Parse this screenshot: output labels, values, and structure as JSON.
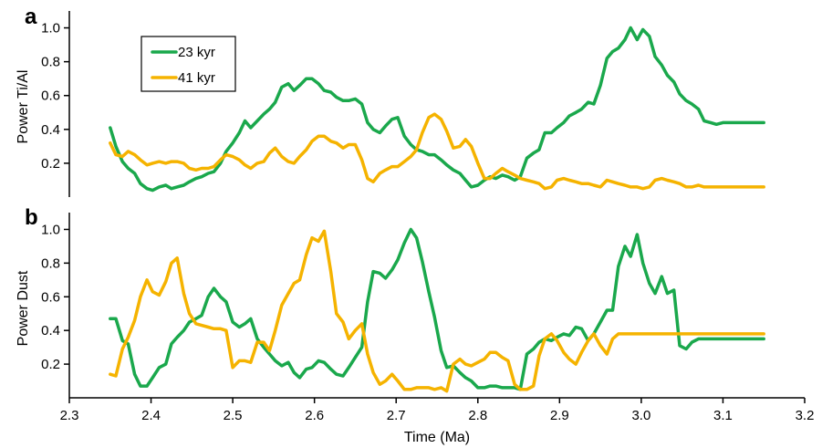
{
  "chart_data": [
    {
      "type": "line",
      "panel_letter": "a",
      "ylabel": "Power Ti/Al",
      "xlabel": "",
      "xlim": [
        2.3,
        3.2
      ],
      "ylim": [
        0,
        1.1
      ],
      "yticks": [
        0.2,
        0.4,
        0.6,
        0.8,
        1.0
      ],
      "ytick_labels": [
        "0.2",
        "0.4",
        "0.6",
        "0.8",
        "1.0"
      ],
      "show_x_ticks": false,
      "legend": {
        "placement": "top-left",
        "entries": [
          "23 kyr",
          "41 kyr"
        ]
      },
      "series": [
        {
          "name": "23 kyr",
          "color": "#1aa84c",
          "x": [
            2.35,
            2.357,
            2.365,
            2.372,
            2.38,
            2.387,
            2.395,
            2.402,
            2.41,
            2.418,
            2.425,
            2.432,
            2.44,
            2.447,
            2.455,
            2.462,
            2.47,
            2.477,
            2.485,
            2.492,
            2.5,
            2.508,
            2.515,
            2.522,
            2.53,
            2.538,
            2.545,
            2.552,
            2.56,
            2.568,
            2.575,
            2.582,
            2.59,
            2.597,
            2.605,
            2.612,
            2.62,
            2.627,
            2.635,
            2.642,
            2.65,
            2.658,
            2.665,
            2.672,
            2.68,
            2.687,
            2.695,
            2.702,
            2.71,
            2.718,
            2.725,
            2.732,
            2.74,
            2.747,
            2.755,
            2.762,
            2.77,
            2.778,
            2.785,
            2.792,
            2.8,
            2.808,
            2.815,
            2.822,
            2.83,
            2.837,
            2.845,
            2.852,
            2.86,
            2.868,
            2.875,
            2.882,
            2.89,
            2.897,
            2.905,
            2.912,
            2.92,
            2.927,
            2.935,
            2.942,
            2.95,
            2.958,
            2.965,
            2.972,
            2.98,
            2.987,
            2.995,
            3.002,
            3.01,
            3.017,
            3.025,
            3.032,
            3.04,
            3.047,
            3.055,
            3.062,
            3.07,
            3.077,
            3.085,
            3.092,
            3.1,
            3.108,
            3.115,
            3.122,
            3.13,
            3.137,
            3.145,
            3.15
          ],
          "values": [
            0.41,
            0.3,
            0.21,
            0.17,
            0.14,
            0.08,
            0.05,
            0.04,
            0.06,
            0.07,
            0.05,
            0.06,
            0.07,
            0.09,
            0.11,
            0.12,
            0.14,
            0.15,
            0.2,
            0.27,
            0.32,
            0.38,
            0.45,
            0.41,
            0.45,
            0.49,
            0.52,
            0.56,
            0.65,
            0.67,
            0.63,
            0.66,
            0.7,
            0.7,
            0.67,
            0.63,
            0.62,
            0.59,
            0.57,
            0.57,
            0.58,
            0.55,
            0.44,
            0.4,
            0.38,
            0.42,
            0.46,
            0.47,
            0.36,
            0.31,
            0.28,
            0.27,
            0.25,
            0.25,
            0.22,
            0.19,
            0.16,
            0.14,
            0.1,
            0.06,
            0.07,
            0.1,
            0.12,
            0.11,
            0.13,
            0.12,
            0.1,
            0.12,
            0.23,
            0.26,
            0.28,
            0.38,
            0.38,
            0.41,
            0.44,
            0.48,
            0.5,
            0.52,
            0.56,
            0.55,
            0.66,
            0.82,
            0.86,
            0.88,
            0.93,
            1.0,
            0.93,
            0.99,
            0.95,
            0.83,
            0.78,
            0.72,
            0.68,
            0.61,
            0.57,
            0.55,
            0.52,
            0.45,
            0.44,
            0.43,
            0.44,
            0.44,
            0.44,
            0.44,
            0.44,
            0.44,
            0.44,
            0.44
          ]
        },
        {
          "name": "41 kyr",
          "color": "#f5b300",
          "x": [
            2.35,
            2.357,
            2.365,
            2.372,
            2.38,
            2.387,
            2.395,
            2.402,
            2.41,
            2.418,
            2.425,
            2.432,
            2.44,
            2.447,
            2.455,
            2.462,
            2.47,
            2.477,
            2.485,
            2.492,
            2.5,
            2.508,
            2.515,
            2.522,
            2.53,
            2.538,
            2.545,
            2.552,
            2.56,
            2.568,
            2.575,
            2.582,
            2.59,
            2.597,
            2.605,
            2.612,
            2.62,
            2.627,
            2.635,
            2.642,
            2.65,
            2.658,
            2.665,
            2.672,
            2.68,
            2.687,
            2.695,
            2.702,
            2.71,
            2.718,
            2.725,
            2.732,
            2.74,
            2.747,
            2.755,
            2.762,
            2.77,
            2.778,
            2.785,
            2.792,
            2.8,
            2.808,
            2.815,
            2.822,
            2.83,
            2.837,
            2.845,
            2.852,
            2.86,
            2.868,
            2.875,
            2.882,
            2.89,
            2.897,
            2.905,
            2.912,
            2.92,
            2.927,
            2.935,
            2.942,
            2.95,
            2.958,
            2.965,
            2.972,
            2.98,
            2.987,
            2.995,
            3.002,
            3.01,
            3.017,
            3.025,
            3.032,
            3.04,
            3.047,
            3.055,
            3.062,
            3.07,
            3.077,
            3.085,
            3.092,
            3.1,
            3.108,
            3.115,
            3.122,
            3.13,
            3.137,
            3.145,
            3.15
          ],
          "values": [
            0.32,
            0.25,
            0.24,
            0.27,
            0.25,
            0.22,
            0.19,
            0.2,
            0.21,
            0.2,
            0.21,
            0.21,
            0.2,
            0.17,
            0.16,
            0.17,
            0.17,
            0.18,
            0.22,
            0.25,
            0.24,
            0.22,
            0.19,
            0.17,
            0.2,
            0.21,
            0.26,
            0.29,
            0.24,
            0.21,
            0.2,
            0.24,
            0.28,
            0.33,
            0.36,
            0.36,
            0.33,
            0.32,
            0.29,
            0.31,
            0.31,
            0.22,
            0.11,
            0.09,
            0.14,
            0.16,
            0.18,
            0.18,
            0.21,
            0.24,
            0.28,
            0.38,
            0.47,
            0.49,
            0.46,
            0.39,
            0.29,
            0.3,
            0.34,
            0.3,
            0.2,
            0.11,
            0.11,
            0.14,
            0.17,
            0.15,
            0.13,
            0.11,
            0.1,
            0.09,
            0.08,
            0.05,
            0.06,
            0.1,
            0.11,
            0.1,
            0.09,
            0.08,
            0.08,
            0.07,
            0.06,
            0.1,
            0.09,
            0.08,
            0.07,
            0.06,
            0.06,
            0.05,
            0.06,
            0.1,
            0.11,
            0.1,
            0.09,
            0.08,
            0.06,
            0.06,
            0.07,
            0.06,
            0.06,
            0.06,
            0.06,
            0.06,
            0.06,
            0.06,
            0.06,
            0.06,
            0.06,
            0.06
          ]
        }
      ]
    },
    {
      "type": "line",
      "panel_letter": "b",
      "ylabel": "Power Dust",
      "xlabel": "Time (Ma)",
      "xlim": [
        2.3,
        3.2
      ],
      "ylim": [
        0,
        1.1
      ],
      "yticks": [
        0.2,
        0.4,
        0.6,
        0.8,
        1.0
      ],
      "ytick_labels": [
        "0.2",
        "0.4",
        "0.6",
        "0.8",
        "1.0"
      ],
      "xticks": [
        2.3,
        2.4,
        2.5,
        2.6,
        2.7,
        2.8,
        2.9,
        3.0,
        3.1,
        3.2
      ],
      "xtick_labels": [
        "2.3",
        "2.4",
        "2.5",
        "2.6",
        "2.7",
        "2.8",
        "2.9",
        "3.0",
        "3.1",
        "3.2"
      ],
      "series": [
        {
          "name": "23 kyr",
          "color": "#1aa84c",
          "x": [
            2.35,
            2.357,
            2.365,
            2.372,
            2.38,
            2.387,
            2.395,
            2.402,
            2.41,
            2.418,
            2.425,
            2.432,
            2.44,
            2.447,
            2.455,
            2.462,
            2.47,
            2.477,
            2.485,
            2.492,
            2.5,
            2.508,
            2.515,
            2.522,
            2.53,
            2.538,
            2.545,
            2.552,
            2.56,
            2.568,
            2.575,
            2.582,
            2.59,
            2.597,
            2.605,
            2.612,
            2.62,
            2.627,
            2.635,
            2.642,
            2.65,
            2.658,
            2.665,
            2.672,
            2.68,
            2.687,
            2.695,
            2.702,
            2.71,
            2.718,
            2.725,
            2.732,
            2.74,
            2.747,
            2.755,
            2.762,
            2.77,
            2.778,
            2.785,
            2.792,
            2.8,
            2.808,
            2.815,
            2.822,
            2.83,
            2.837,
            2.845,
            2.852,
            2.86,
            2.868,
            2.875,
            2.882,
            2.89,
            2.897,
            2.905,
            2.912,
            2.92,
            2.927,
            2.935,
            2.942,
            2.95,
            2.958,
            2.965,
            2.972,
            2.98,
            2.987,
            2.995,
            3.002,
            3.01,
            3.017,
            3.025,
            3.032,
            3.04,
            3.047,
            3.055,
            3.062,
            3.07,
            3.077,
            3.085,
            3.092,
            3.1,
            3.108,
            3.115,
            3.122,
            3.13,
            3.137,
            3.145,
            3.15
          ],
          "values": [
            0.47,
            0.47,
            0.34,
            0.32,
            0.14,
            0.07,
            0.07,
            0.12,
            0.18,
            0.2,
            0.32,
            0.36,
            0.4,
            0.45,
            0.47,
            0.49,
            0.6,
            0.65,
            0.6,
            0.57,
            0.45,
            0.42,
            0.44,
            0.47,
            0.35,
            0.3,
            0.26,
            0.22,
            0.19,
            0.21,
            0.15,
            0.12,
            0.17,
            0.18,
            0.22,
            0.21,
            0.17,
            0.14,
            0.13,
            0.18,
            0.24,
            0.3,
            0.57,
            0.75,
            0.74,
            0.71,
            0.76,
            0.82,
            0.92,
            1.0,
            0.95,
            0.81,
            0.63,
            0.48,
            0.28,
            0.18,
            0.19,
            0.15,
            0.12,
            0.1,
            0.06,
            0.06,
            0.07,
            0.07,
            0.06,
            0.06,
            0.06,
            0.05,
            0.26,
            0.29,
            0.33,
            0.35,
            0.34,
            0.36,
            0.38,
            0.37,
            0.42,
            0.41,
            0.34,
            0.38,
            0.45,
            0.52,
            0.52,
            0.78,
            0.9,
            0.84,
            0.97,
            0.8,
            0.68,
            0.62,
            0.72,
            0.62,
            0.64,
            0.31,
            0.29,
            0.33,
            0.35,
            0.35,
            0.35,
            0.35,
            0.35,
            0.35,
            0.35,
            0.35,
            0.35,
            0.35,
            0.35,
            0.35
          ]
        },
        {
          "name": "41 kyr",
          "color": "#f5b300",
          "x": [
            2.35,
            2.357,
            2.365,
            2.372,
            2.38,
            2.387,
            2.395,
            2.402,
            2.41,
            2.418,
            2.425,
            2.432,
            2.44,
            2.447,
            2.455,
            2.462,
            2.47,
            2.477,
            2.485,
            2.492,
            2.5,
            2.508,
            2.515,
            2.522,
            2.53,
            2.538,
            2.545,
            2.552,
            2.56,
            2.568,
            2.575,
            2.582,
            2.59,
            2.597,
            2.605,
            2.612,
            2.62,
            2.627,
            2.635,
            2.642,
            2.65,
            2.658,
            2.665,
            2.672,
            2.68,
            2.687,
            2.695,
            2.702,
            2.71,
            2.718,
            2.725,
            2.732,
            2.74,
            2.747,
            2.755,
            2.762,
            2.77,
            2.778,
            2.785,
            2.792,
            2.8,
            2.808,
            2.815,
            2.822,
            2.83,
            2.837,
            2.845,
            2.852,
            2.86,
            2.868,
            2.875,
            2.882,
            2.89,
            2.897,
            2.905,
            2.912,
            2.92,
            2.927,
            2.935,
            2.942,
            2.95,
            2.958,
            2.965,
            2.972,
            2.98,
            2.987,
            2.995,
            3.002,
            3.01,
            3.017,
            3.025,
            3.032,
            3.04,
            3.047,
            3.055,
            3.062,
            3.07,
            3.077,
            3.085,
            3.092,
            3.1,
            3.108,
            3.115,
            3.122,
            3.13,
            3.137,
            3.145,
            3.15
          ],
          "values": [
            0.14,
            0.13,
            0.29,
            0.36,
            0.46,
            0.6,
            0.7,
            0.63,
            0.61,
            0.69,
            0.8,
            0.83,
            0.62,
            0.5,
            0.44,
            0.43,
            0.42,
            0.41,
            0.41,
            0.4,
            0.18,
            0.22,
            0.22,
            0.21,
            0.33,
            0.33,
            0.28,
            0.4,
            0.55,
            0.62,
            0.68,
            0.7,
            0.85,
            0.95,
            0.93,
            0.99,
            0.75,
            0.5,
            0.45,
            0.35,
            0.4,
            0.44,
            0.26,
            0.15,
            0.08,
            0.1,
            0.14,
            0.1,
            0.05,
            0.05,
            0.06,
            0.06,
            0.06,
            0.05,
            0.06,
            0.04,
            0.2,
            0.23,
            0.2,
            0.19,
            0.21,
            0.23,
            0.27,
            0.27,
            0.24,
            0.22,
            0.08,
            0.05,
            0.05,
            0.07,
            0.25,
            0.35,
            0.38,
            0.34,
            0.27,
            0.23,
            0.2,
            0.27,
            0.34,
            0.38,
            0.31,
            0.26,
            0.35,
            0.38,
            0.38,
            0.38,
            0.38,
            0.38,
            0.38,
            0.38,
            0.38,
            0.38,
            0.38,
            0.38,
            0.38,
            0.38,
            0.38,
            0.38,
            0.38,
            0.38,
            0.38,
            0.38,
            0.38,
            0.38,
            0.38,
            0.38,
            0.38,
            0.38
          ]
        }
      ]
    }
  ]
}
